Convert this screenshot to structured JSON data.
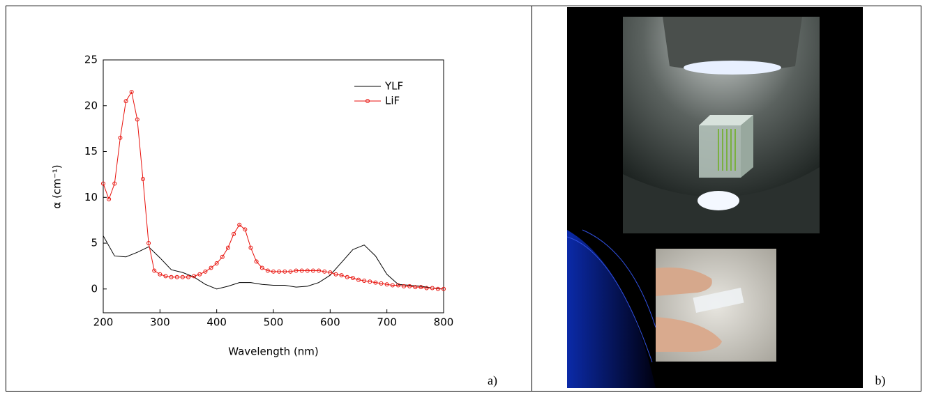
{
  "chart_data": {
    "type": "line",
    "x_label": "Wavelength (nm)",
    "y_label": "α (cm⁻¹)",
    "xlim": [
      200,
      800
    ],
    "xticks": [
      200,
      300,
      400,
      500,
      600,
      700,
      800
    ],
    "ylim": [
      -2.6,
      25
    ],
    "yticks": [
      0,
      5,
      10,
      15,
      20,
      25
    ],
    "legend": "upper-right",
    "series": [
      {
        "name": "YLF",
        "color": "#000000",
        "marker": false,
        "x": [
          200,
          220,
          240,
          260,
          280,
          300,
          320,
          340,
          360,
          380,
          400,
          420,
          440,
          460,
          480,
          500,
          520,
          540,
          560,
          580,
          600,
          620,
          640,
          660,
          680,
          700,
          720,
          740,
          760,
          780,
          800
        ],
        "values": [
          5.8,
          3.6,
          3.5,
          4.0,
          4.6,
          3.4,
          2.1,
          1.8,
          1.3,
          0.5,
          0.0,
          0.3,
          0.7,
          0.7,
          0.5,
          0.4,
          0.4,
          0.2,
          0.3,
          0.7,
          1.5,
          2.9,
          4.3,
          4.8,
          3.6,
          1.6,
          0.5,
          0.4,
          0.3,
          0.1,
          0.0
        ]
      },
      {
        "name": "LiF",
        "color": "#e8120c",
        "marker": true,
        "x": [
          200,
          210,
          220,
          230,
          240,
          250,
          260,
          270,
          280,
          290,
          300,
          310,
          320,
          330,
          340,
          350,
          360,
          370,
          380,
          390,
          400,
          410,
          420,
          430,
          440,
          450,
          460,
          470,
          480,
          490,
          500,
          510,
          520,
          530,
          540,
          550,
          560,
          570,
          580,
          590,
          600,
          610,
          620,
          630,
          640,
          650,
          660,
          670,
          680,
          690,
          700,
          710,
          720,
          730,
          740,
          750,
          760,
          770,
          780,
          790,
          800
        ],
        "values": [
          11.5,
          9.8,
          11.5,
          16.5,
          20.5,
          21.5,
          18.5,
          12,
          5,
          2,
          1.6,
          1.4,
          1.3,
          1.3,
          1.3,
          1.3,
          1.4,
          1.6,
          1.9,
          2.3,
          2.8,
          3.5,
          4.5,
          6.0,
          7.0,
          6.5,
          4.5,
          3.0,
          2.3,
          2.0,
          1.9,
          1.9,
          1.9,
          1.9,
          2.0,
          2.0,
          2.0,
          2.0,
          2.0,
          1.9,
          1.8,
          1.6,
          1.5,
          1.3,
          1.2,
          1.0,
          0.9,
          0.8,
          0.7,
          0.6,
          0.5,
          0.4,
          0.4,
          0.3,
          0.3,
          0.2,
          0.2,
          0.1,
          0.1,
          0.0,
          0.0
        ]
      }
    ]
  },
  "panels": [
    "a)",
    "b)"
  ]
}
